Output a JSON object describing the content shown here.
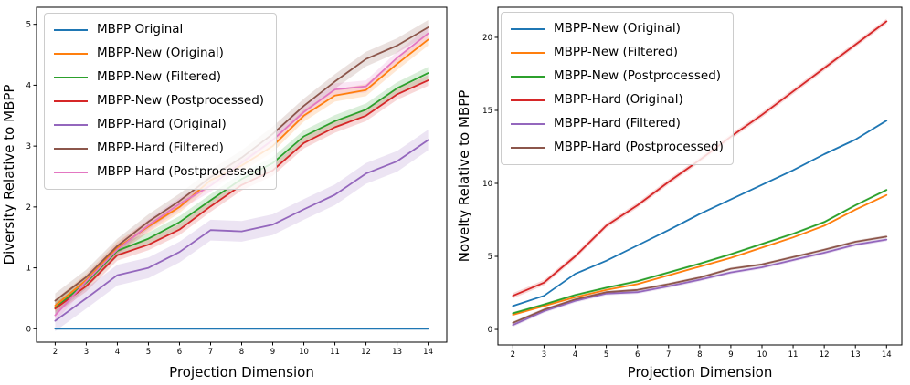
{
  "page": {
    "background": "#ffffff"
  },
  "chart_data": [
    {
      "type": "line",
      "title": "",
      "xlabel": "Projection Dimension",
      "ylabel": "Diversity Relative to MBPP",
      "x": [
        2,
        3,
        4,
        5,
        6,
        7,
        8,
        9,
        10,
        11,
        12,
        13,
        14
      ],
      "xticks": [
        2,
        3,
        4,
        5,
        6,
        7,
        8,
        9,
        10,
        11,
        12,
        13,
        14
      ],
      "yticks": [
        0,
        1,
        2,
        3,
        4,
        5
      ],
      "xlim": [
        1.4,
        14.6
      ],
      "ylim": [
        -0.22,
        5.28
      ],
      "grid": false,
      "legend_position": "upper left",
      "series": [
        {
          "name": "MBPP Original",
          "color": "#1f77b4",
          "band": 0,
          "values": [
            0,
            0,
            0,
            0,
            0,
            0,
            0,
            0,
            0,
            0,
            0,
            0,
            0
          ]
        },
        {
          "name": "MBPP-New (Original)",
          "color": "#ff7f0e",
          "band": 0.1,
          "values": [
            0.38,
            0.8,
            1.33,
            1.68,
            2.0,
            2.44,
            2.68,
            3.0,
            3.5,
            3.83,
            3.92,
            4.35,
            4.75
          ]
        },
        {
          "name": "MBPP-New (Filtered)",
          "color": "#2ca02c",
          "band": 0.1,
          "values": [
            0.34,
            0.76,
            1.28,
            1.48,
            1.75,
            2.11,
            2.46,
            2.72,
            3.16,
            3.41,
            3.6,
            3.95,
            4.2
          ]
        },
        {
          "name": "MBPP-New (Postprocessed)",
          "color": "#d62728",
          "band": 0.09,
          "values": [
            0.33,
            0.7,
            1.21,
            1.38,
            1.63,
            2.01,
            2.36,
            2.6,
            3.05,
            3.31,
            3.5,
            3.85,
            4.08
          ]
        },
        {
          "name": "MBPP-Hard (Original)",
          "color": "#9467bd",
          "band": 0.17,
          "values": [
            0.13,
            0.5,
            0.88,
            1.0,
            1.26,
            1.62,
            1.6,
            1.71,
            1.96,
            2.2,
            2.55,
            2.75,
            3.1
          ]
        },
        {
          "name": "MBPP-Hard (Filtered)",
          "color": "#8c564b",
          "band": 0.12,
          "values": [
            0.46,
            0.85,
            1.36,
            1.76,
            2.1,
            2.49,
            2.81,
            3.2,
            3.66,
            4.06,
            4.43,
            4.65,
            4.95
          ]
        },
        {
          "name": "MBPP-Hard (Postprocessed)",
          "color": "#e377c2",
          "band": 0.1,
          "values": [
            0.22,
            0.78,
            1.3,
            1.7,
            2.05,
            2.35,
            2.73,
            3.1,
            3.56,
            3.93,
            3.98,
            4.45,
            4.85
          ]
        }
      ]
    },
    {
      "type": "line",
      "title": "",
      "xlabel": "Projection Dimension",
      "ylabel": "Novelty Relative to MBPP",
      "x": [
        2,
        3,
        4,
        5,
        6,
        7,
        8,
        9,
        10,
        11,
        12,
        13,
        14
      ],
      "xticks": [
        2,
        3,
        4,
        5,
        6,
        7,
        8,
        9,
        10,
        11,
        12,
        13,
        14
      ],
      "yticks": [
        0,
        5,
        10,
        15,
        20
      ],
      "xlim": [
        1.52,
        14.49
      ],
      "ylim": [
        -1.06,
        22.06
      ],
      "grid": false,
      "legend_position": "upper left",
      "series": [
        {
          "name": "MBPP-New (Original)",
          "color": "#1f77b4",
          "band": 0.05,
          "values": [
            1.6,
            2.3,
            3.8,
            4.7,
            5.75,
            6.8,
            7.9,
            8.9,
            9.9,
            10.9,
            12.0,
            13.0,
            14.3
          ]
        },
        {
          "name": "MBPP-New (Filtered)",
          "color": "#ff7f0e",
          "band": 0.07,
          "values": [
            1.0,
            1.6,
            2.2,
            2.7,
            3.1,
            3.7,
            4.3,
            4.9,
            5.6,
            6.3,
            7.1,
            8.2,
            9.2
          ]
        },
        {
          "name": "MBPP-New (Postprocessed)",
          "color": "#2ca02c",
          "band": 0.09,
          "values": [
            1.1,
            1.7,
            2.35,
            2.85,
            3.3,
            3.9,
            4.5,
            5.15,
            5.85,
            6.55,
            7.35,
            8.5,
            9.55
          ]
        },
        {
          "name": "MBPP-Hard (Original)",
          "color": "#d62728",
          "band": 0.18,
          "values": [
            2.3,
            3.2,
            5.0,
            7.1,
            8.5,
            10.1,
            11.6,
            13.2,
            14.7,
            16.3,
            17.9,
            19.5,
            21.1
          ]
        },
        {
          "name": "MBPP-Hard (Filtered)",
          "color": "#9467bd",
          "band": 0.12,
          "values": [
            0.3,
            1.25,
            1.95,
            2.45,
            2.55,
            2.95,
            3.4,
            3.9,
            4.25,
            4.75,
            5.25,
            5.8,
            6.15
          ]
        },
        {
          "name": "MBPP-Hard (Postprocessed)",
          "color": "#8c564b",
          "band": 0.1,
          "values": [
            0.45,
            1.35,
            2.05,
            2.55,
            2.7,
            3.1,
            3.55,
            4.15,
            4.45,
            4.95,
            5.45,
            6.0,
            6.35
          ]
        }
      ]
    }
  ]
}
